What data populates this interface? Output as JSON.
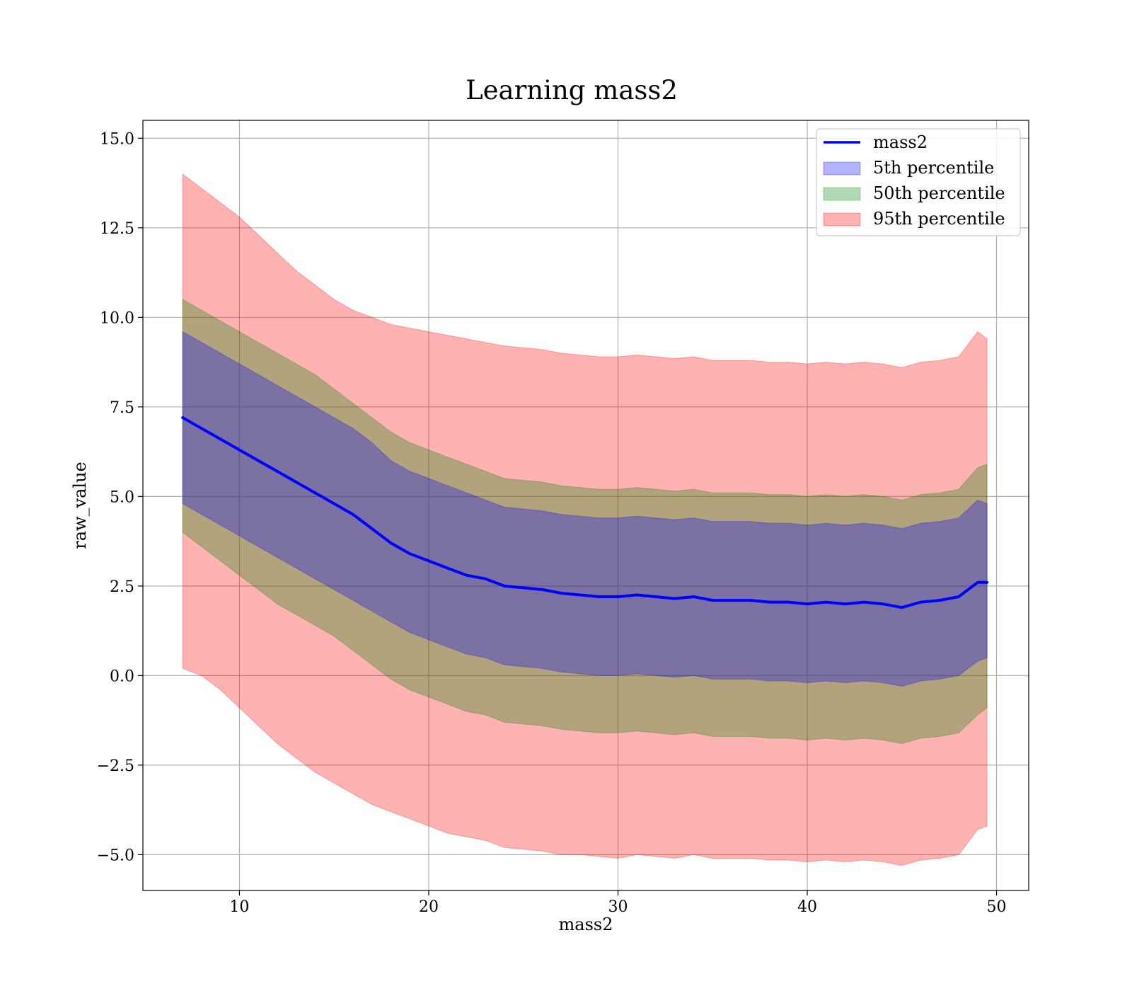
{
  "chart_data": {
    "type": "line",
    "title": "Learning mass2",
    "xlabel": "mass2",
    "ylabel": "raw_value",
    "xlim": [
      4.9,
      51.7
    ],
    "ylim": [
      -6.0,
      15.5
    ],
    "xticks": [
      10,
      20,
      30,
      40,
      50
    ],
    "yticks": [
      15.0,
      12.5,
      10.0,
      7.5,
      5.0,
      2.5,
      0.0,
      -2.5,
      -5.0
    ],
    "xtick_labels": [
      "10",
      "20",
      "30",
      "40",
      "50"
    ],
    "ytick_labels": [
      "15.0",
      "12.5",
      "10.0",
      "7.5",
      "5.0",
      "2.5",
      "0.0",
      "−2.5",
      "−5.0"
    ],
    "grid": true,
    "legend_position": "top-right",
    "x": [
      7,
      8,
      9,
      10,
      11,
      12,
      13,
      14,
      15,
      16,
      17,
      18,
      19,
      20,
      21,
      22,
      23,
      24,
      25,
      26,
      27,
      28,
      29,
      30,
      31,
      32,
      33,
      34,
      35,
      36,
      37,
      38,
      39,
      40,
      41,
      42,
      43,
      44,
      45,
      46,
      47,
      48,
      49,
      49.5
    ],
    "series": [
      {
        "name": "mass2",
        "kind": "line",
        "color": "#0000ff",
        "values": [
          7.2,
          6.9,
          6.6,
          6.3,
          6.0,
          5.7,
          5.4,
          5.1,
          4.8,
          4.5,
          4.1,
          3.7,
          3.4,
          3.2,
          3.0,
          2.8,
          2.7,
          2.5,
          2.45,
          2.4,
          2.3,
          2.25,
          2.2,
          2.2,
          2.25,
          2.2,
          2.15,
          2.2,
          2.1,
          2.1,
          2.1,
          2.05,
          2.05,
          2.0,
          2.05,
          2.0,
          2.05,
          2.0,
          1.9,
          2.05,
          2.1,
          2.2,
          2.6,
          2.6
        ]
      },
      {
        "name": "5th percentile",
        "kind": "band",
        "color": "#0000ff",
        "lower": [
          4.8,
          4.5,
          4.2,
          3.9,
          3.6,
          3.3,
          3.0,
          2.7,
          2.4,
          2.1,
          1.8,
          1.5,
          1.2,
          1.0,
          0.8,
          0.6,
          0.5,
          0.3,
          0.25,
          0.2,
          0.1,
          0.05,
          0.0,
          0.0,
          0.05,
          0.0,
          -0.05,
          0.0,
          -0.1,
          -0.1,
          -0.1,
          -0.15,
          -0.15,
          -0.2,
          -0.15,
          -0.2,
          -0.15,
          -0.2,
          -0.3,
          -0.15,
          -0.1,
          0.0,
          0.4,
          0.5
        ],
        "upper": [
          9.6,
          9.3,
          9.0,
          8.7,
          8.4,
          8.1,
          7.8,
          7.5,
          7.2,
          6.9,
          6.5,
          6.0,
          5.7,
          5.5,
          5.3,
          5.1,
          4.9,
          4.7,
          4.65,
          4.6,
          4.5,
          4.45,
          4.4,
          4.4,
          4.45,
          4.4,
          4.35,
          4.4,
          4.3,
          4.3,
          4.3,
          4.25,
          4.25,
          4.2,
          4.25,
          4.2,
          4.25,
          4.2,
          4.1,
          4.25,
          4.3,
          4.4,
          4.9,
          4.8
        ]
      },
      {
        "name": "50th percentile",
        "kind": "band",
        "color": "#008000",
        "lower": [
          4.0,
          3.6,
          3.2,
          2.8,
          2.4,
          2.0,
          1.7,
          1.4,
          1.1,
          0.7,
          0.3,
          -0.1,
          -0.4,
          -0.6,
          -0.8,
          -1.0,
          -1.1,
          -1.3,
          -1.35,
          -1.4,
          -1.5,
          -1.55,
          -1.6,
          -1.6,
          -1.55,
          -1.6,
          -1.65,
          -1.6,
          -1.7,
          -1.7,
          -1.7,
          -1.75,
          -1.75,
          -1.8,
          -1.75,
          -1.8,
          -1.75,
          -1.8,
          -1.9,
          -1.75,
          -1.7,
          -1.6,
          -1.1,
          -0.9
        ],
        "upper": [
          10.5,
          10.2,
          9.9,
          9.6,
          9.3,
          9.0,
          8.7,
          8.4,
          8.0,
          7.6,
          7.2,
          6.8,
          6.5,
          6.3,
          6.1,
          5.9,
          5.7,
          5.5,
          5.45,
          5.4,
          5.3,
          5.25,
          5.2,
          5.2,
          5.25,
          5.2,
          5.15,
          5.2,
          5.1,
          5.1,
          5.1,
          5.05,
          5.05,
          5.0,
          5.05,
          5.0,
          5.05,
          5.0,
          4.9,
          5.05,
          5.1,
          5.2,
          5.8,
          5.9
        ]
      },
      {
        "name": "95th percentile",
        "kind": "band",
        "color": "#ff0000",
        "lower": [
          0.2,
          0.0,
          -0.4,
          -0.9,
          -1.4,
          -1.9,
          -2.3,
          -2.7,
          -3.0,
          -3.3,
          -3.6,
          -3.8,
          -4.0,
          -4.2,
          -4.4,
          -4.5,
          -4.6,
          -4.8,
          -4.85,
          -4.9,
          -5.0,
          -5.0,
          -5.05,
          -5.1,
          -5.0,
          -5.05,
          -5.1,
          -5.0,
          -5.1,
          -5.1,
          -5.1,
          -5.15,
          -5.15,
          -5.2,
          -5.15,
          -5.2,
          -5.15,
          -5.2,
          -5.3,
          -5.15,
          -5.1,
          -5.0,
          -4.3,
          -4.2
        ],
        "upper": [
          14.0,
          13.6,
          13.2,
          12.8,
          12.3,
          11.8,
          11.3,
          10.9,
          10.5,
          10.2,
          10.0,
          9.8,
          9.7,
          9.6,
          9.5,
          9.4,
          9.3,
          9.2,
          9.15,
          9.1,
          9.0,
          8.95,
          8.9,
          8.9,
          8.95,
          8.9,
          8.85,
          8.9,
          8.8,
          8.8,
          8.8,
          8.75,
          8.75,
          8.7,
          8.75,
          8.7,
          8.75,
          8.7,
          8.6,
          8.75,
          8.8,
          8.9,
          9.6,
          9.4
        ]
      }
    ]
  }
}
